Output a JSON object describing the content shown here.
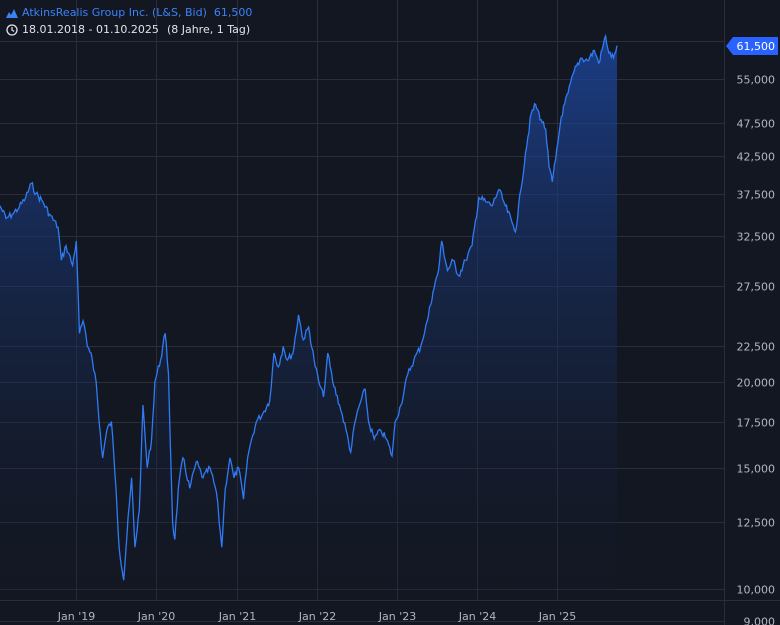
{
  "header": {
    "title": "AtkinsRealis Group Inc. (L&S, Bid)",
    "last_value": "61,500",
    "range": "18.01.2018 - 01.10.2025",
    "span": "(8 Jahre, 1 Tag)"
  },
  "colors": {
    "background": "#131722",
    "grid": "#2a2e39",
    "line": "#2f7bf5",
    "badge": "#2962ff"
  },
  "icons": [
    "mountain-chart-icon",
    "clock-icon"
  ],
  "chart_data": {
    "type": "area",
    "y_scale": "log",
    "grid": true,
    "ylim": [
      9.0,
      66.0
    ],
    "xlim": [
      "2018-01-18",
      "2025-10-01"
    ],
    "last_price": 61.5,
    "last_price_label": "61,500",
    "y_ticks": [
      {
        "value": 55.0,
        "label": "55,000"
      },
      {
        "value": 47.5,
        "label": "47,500"
      },
      {
        "value": 42.5,
        "label": "42,500"
      },
      {
        "value": 37.5,
        "label": "37,500"
      },
      {
        "value": 32.5,
        "label": "32,500"
      },
      {
        "value": 27.5,
        "label": "27,500"
      },
      {
        "value": 22.5,
        "label": "22,500"
      },
      {
        "value": 20.0,
        "label": "20,000"
      },
      {
        "value": 17.5,
        "label": "17,500"
      },
      {
        "value": 15.0,
        "label": "15,000"
      },
      {
        "value": 12.5,
        "label": "12,500"
      },
      {
        "value": 10.0,
        "label": "10,000"
      },
      {
        "value": 9.0,
        "label": "9,000"
      }
    ],
    "x_ticks": [
      {
        "date": "2019-01-01",
        "label": "Jan '19"
      },
      {
        "date": "2020-01-01",
        "label": "Jan '20"
      },
      {
        "date": "2021-01-01",
        "label": "Jan '21"
      },
      {
        "date": "2022-01-01",
        "label": "Jan '22"
      },
      {
        "date": "2023-01-01",
        "label": "Jan '23"
      },
      {
        "date": "2024-01-01",
        "label": "Jan '24"
      },
      {
        "date": "2025-01-01",
        "label": "Jan '25"
      }
    ],
    "series": [
      {
        "values": [
          [
            "2018-01-18",
            36.0
          ],
          [
            "2018-02-15",
            34.5
          ],
          [
            "2018-03-15",
            35.0
          ],
          [
            "2018-04-15",
            35.8
          ],
          [
            "2018-05-15",
            37.0
          ],
          [
            "2018-06-10",
            38.8
          ],
          [
            "2018-07-01",
            37.5
          ],
          [
            "2018-08-01",
            36.5
          ],
          [
            "2018-09-01",
            35.0
          ],
          [
            "2018-10-10",
            33.5
          ],
          [
            "2018-10-25",
            30.0
          ],
          [
            "2018-11-15",
            31.5
          ],
          [
            "2018-12-15",
            29.5
          ],
          [
            "2019-01-01",
            32.0
          ],
          [
            "2019-01-15",
            23.5
          ],
          [
            "2019-02-01",
            24.5
          ],
          [
            "2019-02-20",
            22.5
          ],
          [
            "2019-03-10",
            22.0
          ],
          [
            "2019-04-01",
            20.0
          ],
          [
            "2019-04-15",
            17.5
          ],
          [
            "2019-05-01",
            15.5
          ],
          [
            "2019-05-20",
            17.0
          ],
          [
            "2019-06-10",
            17.5
          ],
          [
            "2019-07-01",
            14.0
          ],
          [
            "2019-07-15",
            11.5
          ],
          [
            "2019-08-05",
            10.3
          ],
          [
            "2019-08-20",
            12.0
          ],
          [
            "2019-09-10",
            14.5
          ],
          [
            "2019-09-25",
            11.5
          ],
          [
            "2019-10-15",
            13.0
          ],
          [
            "2019-11-01",
            18.5
          ],
          [
            "2019-11-20",
            15.0
          ],
          [
            "2019-12-10",
            16.5
          ],
          [
            "2019-12-25",
            20.0
          ],
          [
            "2020-01-20",
            21.5
          ],
          [
            "2020-02-10",
            23.5
          ],
          [
            "2020-02-25",
            20.5
          ],
          [
            "2020-03-15",
            12.5
          ],
          [
            "2020-03-25",
            11.8
          ],
          [
            "2020-04-10",
            14.0
          ],
          [
            "2020-05-01",
            15.5
          ],
          [
            "2020-06-01",
            14.0
          ],
          [
            "2020-07-01",
            15.3
          ],
          [
            "2020-08-01",
            14.5
          ],
          [
            "2020-09-01",
            15.0
          ],
          [
            "2020-10-01",
            13.8
          ],
          [
            "2020-10-25",
            11.5
          ],
          [
            "2020-11-10",
            14.0
          ],
          [
            "2020-12-01",
            15.5
          ],
          [
            "2020-12-20",
            14.5
          ],
          [
            "2021-01-10",
            15.0
          ],
          [
            "2021-02-01",
            13.5
          ],
          [
            "2021-02-20",
            15.5
          ],
          [
            "2021-03-10",
            16.5
          ],
          [
            "2021-04-01",
            17.5
          ],
          [
            "2021-05-01",
            18.0
          ],
          [
            "2021-06-01",
            18.8
          ],
          [
            "2021-06-20",
            22.0
          ],
          [
            "2021-07-10",
            21.0
          ],
          [
            "2021-08-01",
            22.5
          ],
          [
            "2021-08-20",
            21.5
          ],
          [
            "2021-09-15",
            22.0
          ],
          [
            "2021-10-10",
            25.0
          ],
          [
            "2021-11-01",
            23.0
          ],
          [
            "2021-11-25",
            24.0
          ],
          [
            "2021-12-20",
            21.5
          ],
          [
            "2022-01-10",
            20.0
          ],
          [
            "2022-02-01",
            19.0
          ],
          [
            "2022-02-20",
            22.0
          ],
          [
            "2022-03-15",
            20.0
          ],
          [
            "2022-04-15",
            18.5
          ],
          [
            "2022-05-15",
            17.0
          ],
          [
            "2022-06-05",
            15.8
          ],
          [
            "2022-06-25",
            17.5
          ],
          [
            "2022-07-15",
            18.5
          ],
          [
            "2022-08-10",
            19.5
          ],
          [
            "2022-08-25",
            17.5
          ],
          [
            "2022-09-20",
            16.5
          ],
          [
            "2022-10-20",
            17.0
          ],
          [
            "2022-11-15",
            16.5
          ],
          [
            "2022-12-10",
            15.6
          ],
          [
            "2022-12-25",
            17.5
          ],
          [
            "2023-01-20",
            18.5
          ],
          [
            "2023-02-20",
            20.5
          ],
          [
            "2023-03-20",
            21.5
          ],
          [
            "2023-04-20",
            22.5
          ],
          [
            "2023-05-20",
            24.5
          ],
          [
            "2023-06-15",
            27.0
          ],
          [
            "2023-07-10",
            29.0
          ],
          [
            "2023-07-25",
            32.0
          ],
          [
            "2023-08-20",
            29.0
          ],
          [
            "2023-09-15",
            30.0
          ],
          [
            "2023-10-10",
            28.5
          ],
          [
            "2023-11-10",
            30.0
          ],
          [
            "2023-12-10",
            31.5
          ],
          [
            "2024-01-10",
            37.0
          ],
          [
            "2024-02-10",
            36.5
          ],
          [
            "2024-03-10",
            36.0
          ],
          [
            "2024-04-10",
            38.0
          ],
          [
            "2024-05-10",
            36.0
          ],
          [
            "2024-06-10",
            34.0
          ],
          [
            "2024-06-25",
            33.0
          ],
          [
            "2024-07-20",
            38.0
          ],
          [
            "2024-08-10",
            43.0
          ],
          [
            "2024-09-05",
            49.0
          ],
          [
            "2024-09-25",
            50.5
          ],
          [
            "2024-10-20",
            48.0
          ],
          [
            "2024-11-10",
            46.5
          ],
          [
            "2024-11-25",
            41.0
          ],
          [
            "2024-12-10",
            39.0
          ],
          [
            "2024-12-25",
            42.0
          ],
          [
            "2025-01-20",
            48.5
          ],
          [
            "2025-02-20",
            52.5
          ],
          [
            "2025-03-20",
            56.5
          ],
          [
            "2025-04-20",
            59.0
          ],
          [
            "2025-05-20",
            58.5
          ],
          [
            "2025-06-20",
            60.5
          ],
          [
            "2025-07-10",
            58.0
          ],
          [
            "2025-08-10",
            63.5
          ],
          [
            "2025-08-25",
            60.0
          ],
          [
            "2025-09-15",
            59.0
          ],
          [
            "2025-10-01",
            61.5
          ]
        ]
      }
    ]
  }
}
